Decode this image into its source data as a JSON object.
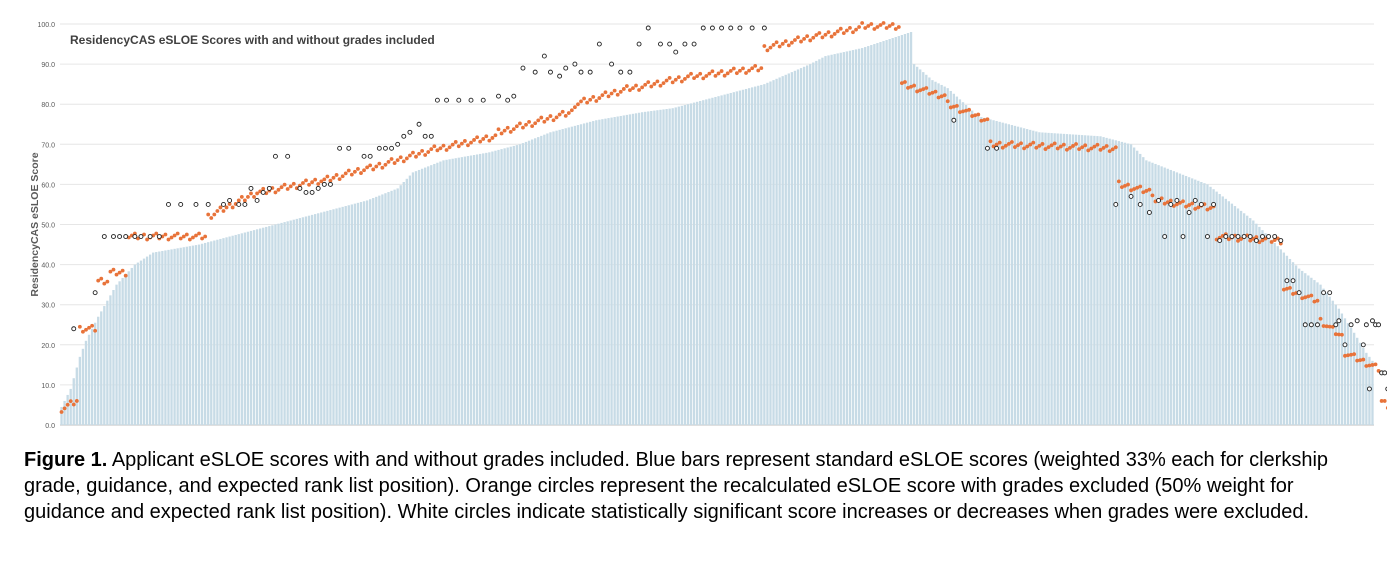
{
  "figure": {
    "caption_label": "Figure 1.",
    "caption_text": " Applicant eSLOE scores with and without grades included. Blue bars represent standard eSLOE scores (weighted 33% each for clerkship grade, guidance, and expected rank list position). Orange circles represent the recalculated eSLOE score with grades excluded (50% weight for guidance and expected rank list position). White circles indicate statistically significant score increases or decreases when grades were excluded."
  },
  "colors": {
    "bar": "#c7dbe6",
    "orange": "#e8733a",
    "white_circle_stroke": "#222222",
    "grid": "#e6e6e6",
    "axis_text": "#595959",
    "title": "#404040"
  },
  "chart_data": {
    "type": "bar",
    "title": "ResidencyCAS eSLOE Scores with and without grades included",
    "ylabel": "ResidencyCAS eSLOE Score",
    "ylim": [
      0,
      100
    ],
    "y_ticks": [
      "0.0",
      "10.0",
      "20.0",
      "30.0",
      "40.0",
      "50.0",
      "60.0",
      "70.0",
      "80.0",
      "90.0",
      "100.0"
    ],
    "grid": true,
    "legend": "none",
    "num_applicants": 430,
    "bar_profile_anchors": [
      [
        0,
        4.5
      ],
      [
        3,
        9
      ],
      [
        6,
        17
      ],
      [
        8,
        21
      ],
      [
        12,
        27
      ],
      [
        18,
        35
      ],
      [
        24,
        40
      ],
      [
        30,
        43
      ],
      [
        45,
        45
      ],
      [
        55,
        47
      ],
      [
        60,
        48
      ],
      [
        70,
        50
      ],
      [
        80,
        52
      ],
      [
        90,
        54
      ],
      [
        100,
        56
      ],
      [
        110,
        59
      ],
      [
        115,
        63
      ],
      [
        125,
        66
      ],
      [
        140,
        68
      ],
      [
        150,
        70
      ],
      [
        160,
        73
      ],
      [
        175,
        76
      ],
      [
        190,
        78
      ],
      [
        200,
        79
      ],
      [
        215,
        82
      ],
      [
        230,
        85
      ],
      [
        245,
        90
      ],
      [
        250,
        92
      ],
      [
        262,
        94
      ],
      [
        270,
        96
      ],
      [
        278,
        98
      ],
      [
        279,
        90
      ],
      [
        285,
        86
      ],
      [
        290,
        84
      ],
      [
        300,
        77
      ],
      [
        305,
        76
      ],
      [
        320,
        73
      ],
      [
        340,
        72
      ],
      [
        350,
        70
      ],
      [
        355,
        66
      ],
      [
        365,
        63
      ],
      [
        375,
        60
      ],
      [
        390,
        51
      ],
      [
        400,
        43
      ],
      [
        405,
        39
      ],
      [
        412,
        35
      ],
      [
        418,
        29
      ],
      [
        423,
        23
      ],
      [
        427,
        18
      ],
      [
        432,
        13
      ],
      [
        436,
        8
      ],
      [
        438,
        5
      ],
      [
        440,
        2.5
      ]
    ],
    "orange_segments": [
      [
        0,
        6,
        4,
        6
      ],
      [
        6,
        12,
        24,
        24
      ],
      [
        12,
        16,
        36,
        36
      ],
      [
        16,
        22,
        38,
        38
      ],
      [
        22,
        48,
        47,
        47
      ],
      [
        48,
        65,
        52,
        58
      ],
      [
        65,
        86,
        58,
        61
      ],
      [
        86,
        101,
        61,
        64
      ],
      [
        101,
        124,
        64,
        69
      ],
      [
        124,
        143,
        69,
        72
      ],
      [
        143,
        168,
        73,
        78
      ],
      [
        168,
        187,
        80,
        84
      ],
      [
        187,
        208,
        84,
        87
      ],
      [
        208,
        230,
        87,
        89
      ],
      [
        230,
        248,
        94,
        97
      ],
      [
        248,
        262,
        97,
        99
      ],
      [
        262,
        275,
        99.5,
        99.5
      ],
      [
        275,
        290,
        85,
        82
      ],
      [
        290,
        304,
        80,
        76
      ],
      [
        304,
        346,
        70,
        69
      ],
      [
        346,
        358,
        60,
        58
      ],
      [
        358,
        378,
        56,
        54
      ],
      [
        378,
        400,
        47,
        46
      ],
      [
        400,
        412,
        34,
        31
      ],
      [
        412,
        420,
        26,
        22
      ],
      [
        420,
        432,
        18,
        14
      ],
      [
        432,
        440,
        6,
        2.5
      ]
    ],
    "white_circles": [
      [
        4,
        24
      ],
      [
        11,
        33
      ],
      [
        14,
        47
      ],
      [
        17,
        47
      ],
      [
        19,
        47
      ],
      [
        21,
        47
      ],
      [
        24,
        47
      ],
      [
        26,
        47
      ],
      [
        29,
        47
      ],
      [
        32,
        47
      ],
      [
        35,
        55
      ],
      [
        39,
        55
      ],
      [
        44,
        55
      ],
      [
        48,
        55
      ],
      [
        53,
        55
      ],
      [
        55,
        56
      ],
      [
        58,
        55
      ],
      [
        60,
        55
      ],
      [
        62,
        59
      ],
      [
        64,
        56
      ],
      [
        66,
        58
      ],
      [
        68,
        59
      ],
      [
        70,
        67
      ],
      [
        74,
        67
      ],
      [
        78,
        59
      ],
      [
        80,
        58
      ],
      [
        82,
        58
      ],
      [
        84,
        59
      ],
      [
        86,
        60
      ],
      [
        88,
        60
      ],
      [
        91,
        69
      ],
      [
        94,
        69
      ],
      [
        99,
        67
      ],
      [
        101,
        67
      ],
      [
        104,
        69
      ],
      [
        106,
        69
      ],
      [
        108,
        69
      ],
      [
        110,
        70
      ],
      [
        112,
        72
      ],
      [
        114,
        73
      ],
      [
        117,
        75
      ],
      [
        119,
        72
      ],
      [
        121,
        72
      ],
      [
        123,
        81
      ],
      [
        126,
        81
      ],
      [
        130,
        81
      ],
      [
        134,
        81
      ],
      [
        138,
        81
      ],
      [
        143,
        82
      ],
      [
        146,
        81
      ],
      [
        148,
        82
      ],
      [
        151,
        89
      ],
      [
        155,
        88
      ],
      [
        158,
        92
      ],
      [
        160,
        88
      ],
      [
        163,
        87
      ],
      [
        165,
        89
      ],
      [
        168,
        90
      ],
      [
        170,
        88
      ],
      [
        173,
        88
      ],
      [
        176,
        95
      ],
      [
        180,
        90
      ],
      [
        183,
        88
      ],
      [
        186,
        88
      ],
      [
        189,
        95
      ],
      [
        192,
        99
      ],
      [
        196,
        95
      ],
      [
        199,
        95
      ],
      [
        201,
        93
      ],
      [
        204,
        95
      ],
      [
        207,
        95
      ],
      [
        210,
        99
      ],
      [
        213,
        99
      ],
      [
        216,
        99
      ],
      [
        219,
        99
      ],
      [
        222,
        99
      ],
      [
        226,
        99
      ],
      [
        230,
        99
      ],
      [
        292,
        76
      ],
      [
        303,
        69
      ],
      [
        306,
        69
      ],
      [
        345,
        55
      ],
      [
        350,
        57
      ],
      [
        353,
        55
      ],
      [
        356,
        53
      ],
      [
        359,
        56
      ],
      [
        361,
        47
      ],
      [
        363,
        55
      ],
      [
        365,
        56
      ],
      [
        367,
        47
      ],
      [
        369,
        53
      ],
      [
        371,
        56
      ],
      [
        373,
        55
      ],
      [
        375,
        47
      ],
      [
        377,
        55
      ],
      [
        379,
        46
      ],
      [
        381,
        47
      ],
      [
        383,
        47
      ],
      [
        385,
        47
      ],
      [
        387,
        47
      ],
      [
        389,
        47
      ],
      [
        391,
        46
      ],
      [
        393,
        47
      ],
      [
        395,
        47
      ],
      [
        397,
        47
      ],
      [
        399,
        46
      ],
      [
        401,
        36
      ],
      [
        403,
        36
      ],
      [
        405,
        33
      ],
      [
        407,
        25
      ],
      [
        409,
        25
      ],
      [
        411,
        25
      ],
      [
        413,
        33
      ],
      [
        415,
        33
      ],
      [
        417,
        25
      ],
      [
        418,
        26
      ],
      [
        420,
        20
      ],
      [
        422,
        25
      ],
      [
        424,
        26
      ],
      [
        426,
        20
      ],
      [
        427,
        25
      ],
      [
        428,
        9
      ],
      [
        429,
        26
      ],
      [
        430,
        25
      ],
      [
        431,
        25
      ],
      [
        432,
        13
      ],
      [
        433,
        13
      ],
      [
        434,
        9
      ],
      [
        435,
        13
      ],
      [
        436,
        13
      ],
      [
        437,
        13
      ],
      [
        438,
        9
      ],
      [
        439,
        9
      ],
      [
        440,
        5
      ]
    ]
  }
}
